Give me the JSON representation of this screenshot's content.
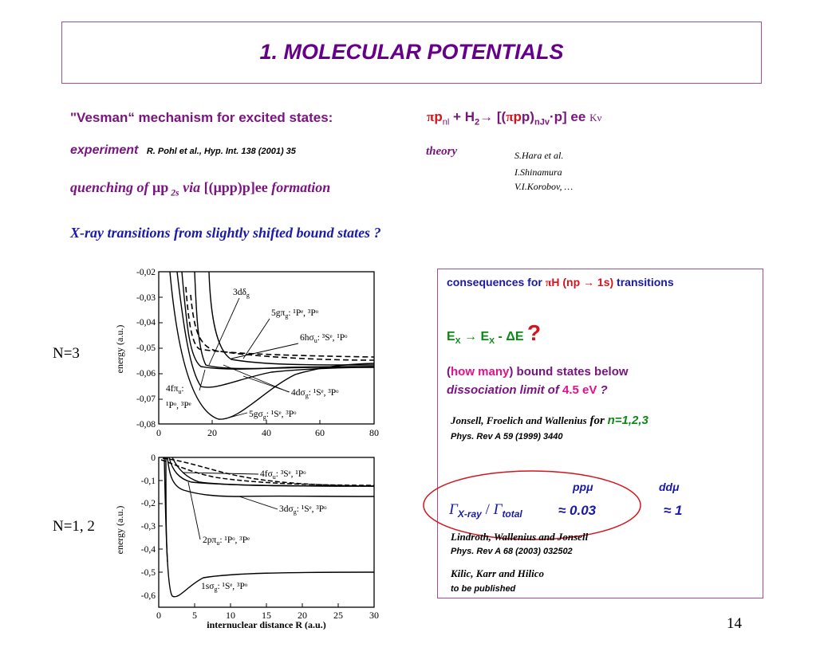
{
  "slide": {
    "title": "1.  MOLECULAR POTENTIALS",
    "page_number": "14"
  },
  "header": {
    "vesman_label": "\"Vesman“ mechanism for excited states:",
    "reaction_pi": "π",
    "reaction_p": "p",
    "reaction_p_sub": "nl",
    "reaction_plus": " + H",
    "reaction_h_sub": "2",
    "reaction_arrow": "→ [(",
    "reaction_pi2": "π",
    "reaction_pp": "p",
    "reaction_p2": "p)",
    "reaction_sub2": "nJv",
    "reaction_tail": "·p] ee",
    "reaction_kv": "Kν"
  },
  "experiment": {
    "label": "experiment",
    "ref": "R. Pohl et al., Hyp. Int. 138 (2001) 35"
  },
  "theory": {
    "label": "theory",
    "authors": [
      "S.Hara et al.",
      "I.Shinamura",
      "V.I.Korobov, …"
    ]
  },
  "quenching": {
    "pre": "quenching of ",
    "mu": "μ",
    "p": "p",
    "sub": " 2s",
    "via": "  via  ",
    "bracket": "[(μpp)p]ee",
    "post": " formation"
  },
  "xray_line": "X-ray transitions from slightly shifted bound states ?",
  "consequences": {
    "heading_pre": "consequences for ",
    "heading_pi": "π",
    "heading_h": "H (np → 1s)",
    "heading_post": "  transitions",
    "ex_line_a": "E",
    "ex_sub_a": "X",
    "ex_arrow": " → E",
    "ex_sub_b": "X",
    "ex_minus": " - ΔE",
    "ex_q": "?",
    "how_open": "(",
    "how_many": "how many",
    "how_close": ") ",
    "bound_states": "bound states below",
    "dissoc": "dissociation limit of  ",
    "energy": "4.5 eV",
    "dissoc_q": " ?",
    "ref1_authors": "Jonsell, Froelich and Wallenius",
    "ref1_for": " for  ",
    "ref1_n": "n=1,2,3",
    "ref1_journal": "Phys. Rev A 59 (1999) 3440",
    "col_ppmu": "ppμ",
    "col_ddmu": "ddμ",
    "gamma_ratio_a": "Γ",
    "gamma_sub_a": "X-ray",
    "gamma_slash": " / ",
    "gamma_ratio_b": "Γ",
    "gamma_sub_b": "total",
    "val_pp": "≈ 0.03",
    "val_dd": "≈ 1",
    "ref2_authors": "Lindroth, Wallenius and Jonsell",
    "ref2_journal": "Phys. Rev A 68 (2003) 032502",
    "ref3_authors": "Kilic, Karr and Hilico",
    "ref3_note": "to be published"
  },
  "plots": {
    "top": {
      "label": "N=3",
      "ylabel": "energy (a.u.)",
      "yticks": [
        "-0,02",
        "-0,03",
        "-0,04",
        "-0,05",
        "-0,06",
        "-0,07",
        "-0,08"
      ],
      "xticks": [
        "0",
        "20",
        "40",
        "60",
        "80"
      ],
      "annotations": {
        "a1": "3dδ",
        "a1_sub": "g",
        "a2": "5gπ",
        "a2_sub": "g",
        "a2_rest": ":  ¹Pᵉ, ³Pᵒ",
        "a3": "6hσ",
        "a3_sub": "u",
        "a3_rest": ": ³Sᵉ, ¹Pᵒ",
        "a4": "4fπ",
        "a4_sub": "u",
        "a4_rest": ":",
        "a4_line2": "¹Pᵒ, ³Pᵉ",
        "a5": "4dσ",
        "a5_sub": "g",
        "a5_rest": ": ¹Sᵉ, ³Pᵒ",
        "a6": "5gσ",
        "a6_sub": "g",
        "a6_rest": ": ¹Sᵉ, ³Pᵒ"
      }
    },
    "bottom": {
      "label": "N=1, 2",
      "ylabel": "energy (a.u.)",
      "xlabel": "internuclear distance R (a.u.)",
      "yticks": [
        "0",
        "-0,1",
        "-0,2",
        "-0,3",
        "-0,4",
        "-0,5",
        "-0,6"
      ],
      "xticks": [
        "0",
        "5",
        "10",
        "15",
        "20",
        "25",
        "30"
      ],
      "annotations": {
        "b1": "4fσ",
        "b1_sub": "u",
        "b1_rest": ": ³Sᵉ, ¹Pᵒ",
        "b2": "3dσ",
        "b2_sub": "g",
        "b2_rest": ": ¹Sᵉ, ³Pᵒ",
        "b3": "2pπ",
        "b3_sub": "u",
        "b3_rest": ": ¹Pᵒ, ³Pᵉ",
        "b4": "1sσ",
        "b4_sub": "g",
        "b4_rest": ": ¹Sᵉ, ³Pᵒ"
      }
    }
  },
  "colors": {
    "title": "#66008a",
    "purple": "#7a1580",
    "blue": "#1a1aa8",
    "red": "#d4141c",
    "green": "#0a8a14",
    "magenta": "#e4108c",
    "box_border": "#a0508a"
  }
}
